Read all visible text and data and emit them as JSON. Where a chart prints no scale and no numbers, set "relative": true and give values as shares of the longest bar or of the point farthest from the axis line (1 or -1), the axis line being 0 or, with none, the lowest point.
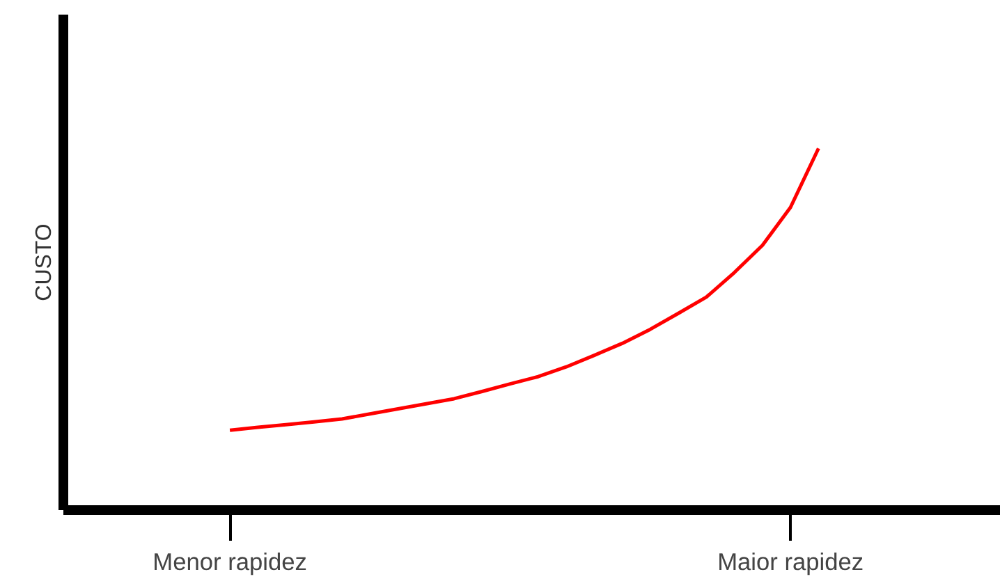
{
  "chart_data": {
    "type": "line",
    "relative": true,
    "ylabel": "CUSTO",
    "categories": [
      "Menor rapidez",
      null,
      null,
      null,
      null,
      null,
      null,
      null,
      null,
      null,
      null,
      null,
      null,
      null,
      null,
      null,
      null,
      null,
      null,
      null,
      "Maior rapidez",
      null
    ],
    "tick_labels": "x",
    "grid": false,
    "marker": "none",
    "line_style": "solid",
    "series": [
      {
        "color": "#ff0000",
        "values": [
          0.221,
          0.229,
          0.236,
          0.244,
          0.252,
          0.266,
          0.28,
          0.294,
          0.308,
          0.328,
          0.349,
          0.369,
          0.396,
          0.428,
          0.461,
          0.5,
          0.544,
          0.589,
          0.657,
          0.732,
          0.837,
          1.0
        ]
      }
    ]
  }
}
